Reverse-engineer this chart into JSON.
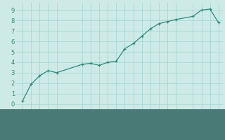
{
  "x": [
    0,
    1,
    2,
    3,
    4,
    7,
    8,
    9,
    10,
    11,
    12,
    13,
    14,
    15,
    16,
    17,
    18,
    20,
    21,
    22,
    23
  ],
  "y": [
    0.3,
    1.9,
    2.7,
    3.2,
    3.0,
    3.8,
    3.9,
    3.7,
    4.0,
    4.1,
    5.3,
    5.8,
    6.5,
    7.2,
    7.7,
    7.9,
    8.1,
    8.4,
    9.0,
    9.1,
    7.8
  ],
  "line_color": "#2e8b7a",
  "marker": "+",
  "marker_color": "#2e8b7a",
  "bg_color": "#ceeae7",
  "plot_bg_color": "#ceeae7",
  "grid_color": "#9dd4cf",
  "axis_bg_color": "#4a7a75",
  "tick_color": "#2e8b7a",
  "label_color": "#ffffff",
  "xlabel_fontsize": 6.5,
  "ytick_labels": [
    "0",
    "1",
    "2",
    "3",
    "4",
    "5",
    "6",
    "7",
    "8",
    "9"
  ],
  "ytick_vals": [
    0,
    1,
    2,
    3,
    4,
    5,
    6,
    7,
    8,
    9
  ],
  "xtick_vals": [
    0,
    1,
    2,
    3,
    4,
    7,
    8,
    9,
    10,
    11,
    12,
    13,
    14,
    15,
    16,
    17,
    18,
    20,
    21,
    22,
    23
  ],
  "ylim": [
    -0.5,
    9.7
  ],
  "xlim": [
    -0.8,
    23.5
  ]
}
